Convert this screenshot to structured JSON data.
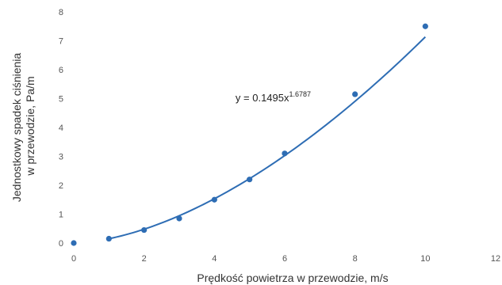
{
  "chart_data": {
    "type": "scatter",
    "title": "",
    "xlabel": "Prędkość powietrza w przewodzie, m/s",
    "ylabel_lines": [
      "Jednostkowy spadek ciśnienia",
      "w przewodzie, Pa/m"
    ],
    "xlim": [
      0,
      12
    ],
    "ylim": [
      0,
      8
    ],
    "xticks": [
      0,
      2,
      4,
      6,
      8,
      10,
      12
    ],
    "yticks": [
      0,
      1,
      2,
      3,
      4,
      5,
      6,
      7,
      8
    ],
    "grid": false,
    "legend": "none",
    "series": [
      {
        "x": [
          0,
          1,
          2,
          3,
          4,
          5,
          6,
          8,
          10
        ],
        "y": [
          0.0,
          0.15,
          0.45,
          0.85,
          1.5,
          2.2,
          3.1,
          5.15,
          7.5
        ],
        "color": "#2e6db4"
      }
    ],
    "trendline": {
      "type": "power",
      "a": 0.1495,
      "b": 1.6787,
      "x_from": 1,
      "x_to": 10,
      "color": "#2e6db4"
    },
    "annotation": {
      "base": "y = 0.1495x",
      "exponent": "1.6787"
    }
  }
}
